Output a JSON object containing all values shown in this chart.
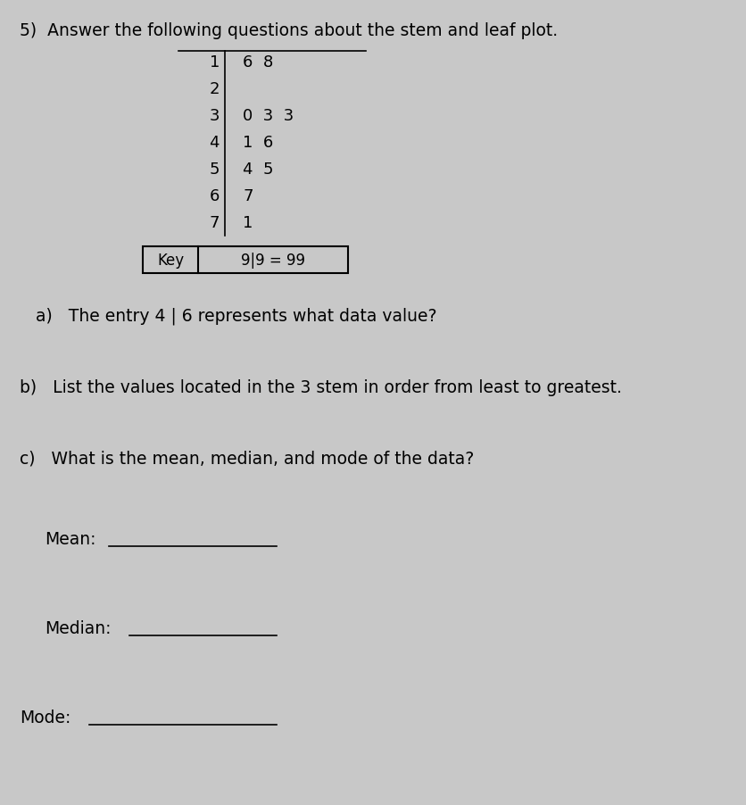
{
  "title": "5)  Answer the following questions about the stem and leaf plot.",
  "stem_leaves": [
    {
      "stem": "1",
      "leaves": "6  8"
    },
    {
      "stem": "2",
      "leaves": ""
    },
    {
      "stem": "3",
      "leaves": "0  3  3"
    },
    {
      "stem": "4",
      "leaves": "1  6"
    },
    {
      "stem": "5",
      "leaves": "4  5"
    },
    {
      "stem": "6",
      "leaves": "7"
    },
    {
      "stem": "7",
      "leaves": "1"
    }
  ],
  "key_label": "Key",
  "key_value": "9|9 = 99",
  "question_a": "a)   The entry 4 | 6 represents what data value?",
  "question_b": "b)   List the values located in the 3 stem in order from least to greatest.",
  "question_c": "c)   What is the mean, median, and mode of the data?",
  "mean_label": "Mean:",
  "median_label": "Median:",
  "mode_label": "Mode:",
  "bg_color": "#c8c8c8",
  "text_color": "#000000",
  "line_color": "#000000"
}
